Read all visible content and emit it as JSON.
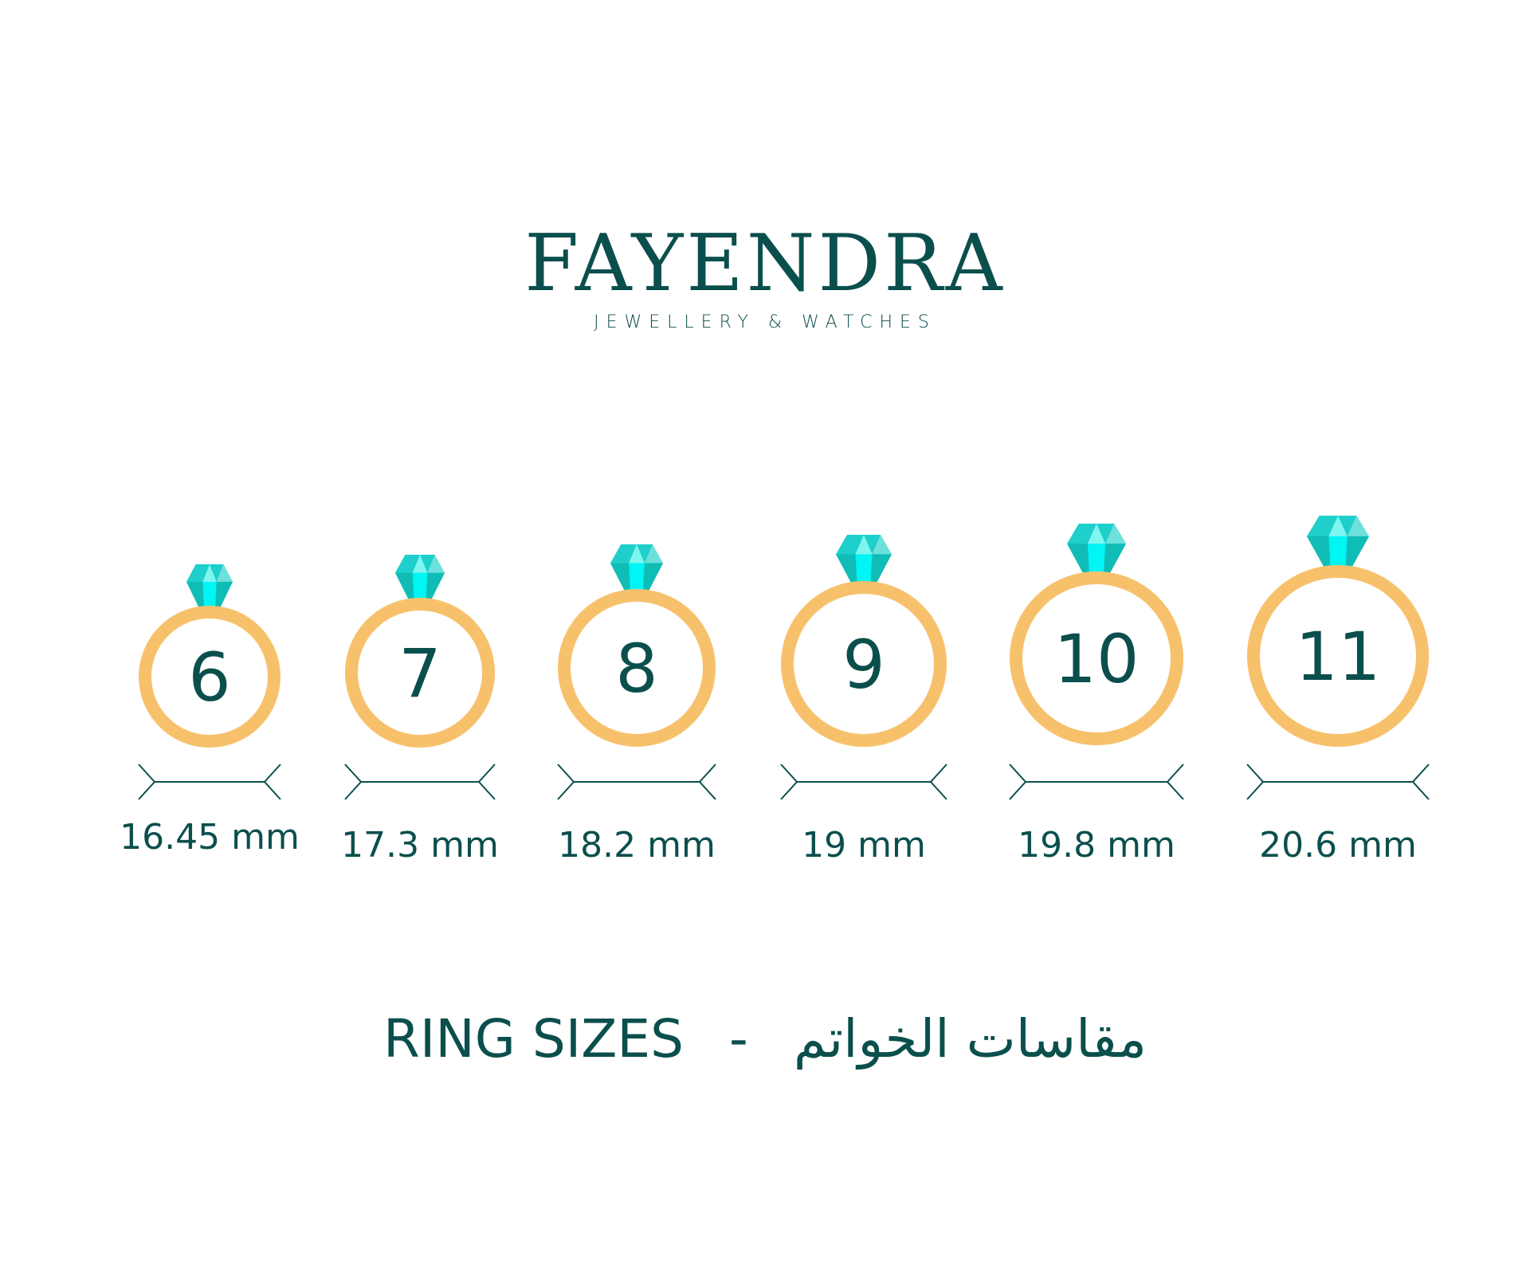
{
  "brand": {
    "name": "FAYENDRA",
    "tagline": "JEWELLERY & WATCHES"
  },
  "colors": {
    "text": "#0b4f4d",
    "ring_band": "#f7c16c",
    "gem_main": "#1ecfcb",
    "gem_light": "#00f5f5",
    "gem_dark": "#10bcb6"
  },
  "rings": [
    {
      "size": "6",
      "diameter": "16.45 mm"
    },
    {
      "size": "7",
      "diameter": "17.3 mm"
    },
    {
      "size": "8",
      "diameter": "18.2 mm"
    },
    {
      "size": "9",
      "diameter": "19 mm"
    },
    {
      "size": "10",
      "diameter": "19.8 mm"
    },
    {
      "size": "11",
      "diameter": "20.6 mm"
    }
  ],
  "title": {
    "english": "RING SIZES",
    "separator": "-",
    "arabic": "مقاسات الخواتم"
  }
}
